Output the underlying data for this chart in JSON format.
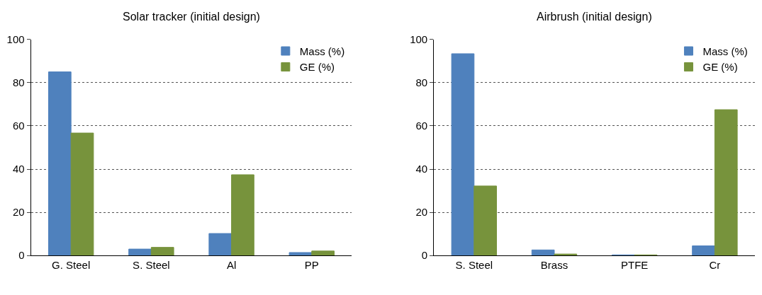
{
  "chart_data": [
    {
      "type": "bar",
      "title": "Solar tracker (initial design)",
      "categories": [
        "G. Steel",
        "S. Steel",
        "Al",
        "PP"
      ],
      "series": [
        {
          "name": "Mass (%)",
          "color": "#4f81bd",
          "values": [
            85,
            3.0,
            10.2,
            1.4
          ]
        },
        {
          "name": "GE (%)",
          "color": "#77933c",
          "values": [
            56.7,
            3.8,
            37.4,
            2.1
          ]
        }
      ],
      "ylim": [
        0,
        100
      ],
      "yticks": [
        0,
        20,
        40,
        60,
        80,
        100
      ],
      "grid": "y",
      "legend": "top right"
    },
    {
      "type": "bar",
      "title": "Airbrush (initial design)",
      "categories": [
        "S. Steel",
        "Brass",
        "PTFE",
        "Cr"
      ],
      "series": [
        {
          "name": "Mass (%)",
          "color": "#4f81bd",
          "values": [
            93.4,
            2.6,
            0.3,
            4.5
          ]
        },
        {
          "name": "GE (%)",
          "color": "#77933c",
          "values": [
            32.2,
            0.7,
            0.3,
            67.5
          ]
        }
      ],
      "ylim": [
        0,
        100
      ],
      "yticks": [
        0,
        20,
        40,
        60,
        80,
        100
      ],
      "grid": "y",
      "legend": "top right"
    }
  ]
}
